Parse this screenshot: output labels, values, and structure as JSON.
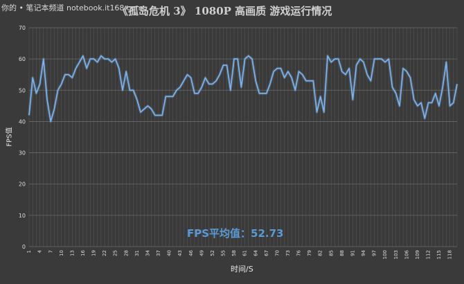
{
  "watermark": "你的 • 笔记本频道 notebook.it168.com",
  "chart_data": {
    "type": "line",
    "title": "《孤岛危机 3》 1080P 高画质 游戏运行情况",
    "xlabel": "时间/S",
    "ylabel": "FPS值",
    "ylim": [
      0,
      70
    ],
    "yticks": [
      0,
      10,
      20,
      30,
      40,
      50,
      60,
      70
    ],
    "xlim": [
      1,
      120
    ],
    "xticks": [
      1,
      4,
      7,
      10,
      13,
      16,
      19,
      22,
      25,
      28,
      31,
      34,
      37,
      40,
      43,
      46,
      49,
      52,
      55,
      58,
      61,
      64,
      67,
      70,
      73,
      76,
      79,
      82,
      85,
      88,
      91,
      94,
      97,
      100,
      103,
      106,
      109,
      112,
      115,
      118
    ],
    "grid": true,
    "annotation": "FPS平均值：52.73",
    "line_color": "#7fb5ee",
    "series": [
      {
        "x": [
          1,
          2,
          3,
          4,
          5,
          6,
          7,
          8,
          9,
          10,
          11,
          12,
          13,
          14,
          15,
          16,
          17,
          18,
          19,
          20,
          21,
          22,
          23,
          24,
          25,
          26,
          27,
          28,
          29,
          30,
          31,
          32,
          33,
          34,
          35,
          36,
          37,
          38,
          39,
          40,
          41,
          42,
          43,
          44,
          45,
          46,
          47,
          48,
          49,
          50,
          51,
          52,
          53,
          54,
          55,
          56,
          57,
          58,
          59,
          60,
          61,
          62,
          63,
          64,
          65,
          66,
          67,
          68,
          69,
          70,
          71,
          72,
          73,
          74,
          75,
          76,
          77,
          78,
          79,
          80,
          81,
          82,
          83,
          84,
          85,
          86,
          87,
          88,
          89,
          90,
          91,
          92,
          93,
          94,
          95,
          96,
          97,
          98,
          99,
          100,
          101,
          102,
          103,
          104,
          105,
          106,
          107,
          108,
          109,
          110,
          111,
          112,
          113,
          114,
          115,
          116,
          117,
          118,
          119,
          120
        ],
        "values": [
          42,
          54,
          49,
          52,
          60,
          47,
          40,
          44,
          50,
          52,
          55,
          55,
          54,
          57,
          59,
          61,
          57,
          60,
          60,
          59,
          61,
          60,
          60,
          59,
          60,
          57,
          50,
          56,
          50,
          50,
          47,
          43,
          44,
          45,
          44,
          42,
          42,
          42,
          48,
          48,
          48,
          50,
          51,
          53,
          55,
          54,
          49,
          49,
          51,
          54,
          52,
          52,
          53,
          55,
          58,
          58,
          50,
          60,
          60,
          51,
          60,
          61,
          60,
          53,
          49,
          49,
          49,
          52,
          56,
          57,
          57,
          54,
          56,
          54,
          50,
          56,
          55,
          53,
          53,
          53,
          43,
          48,
          43,
          61,
          59,
          60,
          60,
          56,
          55,
          57,
          47,
          58,
          60,
          59,
          55,
          53,
          60,
          60,
          60,
          59,
          60,
          51,
          49,
          45,
          57,
          56,
          54,
          47,
          45,
          46,
          41,
          46,
          46,
          49,
          45,
          51,
          59,
          45,
          46,
          52
        ]
      }
    ]
  }
}
